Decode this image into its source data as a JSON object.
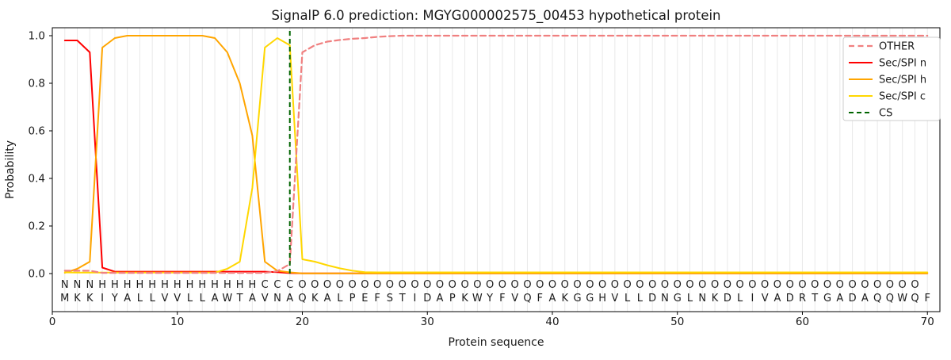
{
  "chart_data": {
    "type": "line",
    "title": "SignalP 6.0 prediction: MGYG000002575_00453 hypothetical protein",
    "xlabel": "Protein sequence",
    "ylabel": "Probability",
    "xlim": [
      0,
      71
    ],
    "ylim": [
      -0.16,
      1.04
    ],
    "xticks": [
      "0",
      "10",
      "20",
      "30",
      "40",
      "50",
      "60",
      "70"
    ],
    "yticks": [
      "0.0",
      "0.2",
      "0.4",
      "0.6",
      "0.8",
      "1.0"
    ],
    "grid": "vertical line at every residue position 1-70",
    "legend_position": "upper right",
    "x_note": "x values are residue positions 1..70 (array index + 1)",
    "series": [
      {
        "name": "Sec/SPI n",
        "color": "#ff0000",
        "dash": null,
        "width": 2,
        "values": [
          0.98,
          0.98,
          0.93,
          0.025,
          0.008,
          0.008,
          0.008,
          0.008,
          0.008,
          0.008,
          0.008,
          0.008,
          0.008,
          0.008,
          0.008,
          0.008,
          0.008,
          0.006,
          0.002,
          0.001,
          0.001,
          0.001,
          0.001,
          0.001,
          0.001,
          0.001,
          0.001,
          0.001,
          0.001,
          0.001,
          0.001,
          0.001,
          0.001,
          0.001,
          0.001,
          0.001,
          0.001,
          0.001,
          0.001,
          0.001,
          0.001,
          0.001,
          0.001,
          0.001,
          0.001,
          0.001,
          0.001,
          0.001,
          0.001,
          0.001,
          0.001,
          0.001,
          0.001,
          0.001,
          0.001,
          0.001,
          0.001,
          0.001,
          0.001,
          0.001,
          0.001,
          0.001,
          0.001,
          0.001,
          0.001,
          0.001,
          0.001,
          0.001,
          0.001,
          0.001
        ]
      },
      {
        "name": "Sec/SPI h",
        "color": "#ffa500",
        "dash": null,
        "width": 2,
        "values": [
          0.003,
          0.02,
          0.05,
          0.95,
          0.99,
          1.0,
          1.0,
          1.0,
          1.0,
          1.0,
          1.0,
          1.0,
          0.99,
          0.93,
          0.8,
          0.58,
          0.05,
          0.012,
          0.005,
          0.001,
          0.001,
          0.001,
          0.001,
          0.001,
          0.001,
          0.001,
          0.001,
          0.001,
          0.001,
          0.001,
          0.001,
          0.001,
          0.001,
          0.001,
          0.001,
          0.001,
          0.001,
          0.001,
          0.001,
          0.001,
          0.001,
          0.001,
          0.001,
          0.001,
          0.001,
          0.001,
          0.001,
          0.001,
          0.001,
          0.001,
          0.001,
          0.001,
          0.001,
          0.001,
          0.001,
          0.001,
          0.001,
          0.001,
          0.001,
          0.001,
          0.001,
          0.001,
          0.001,
          0.001,
          0.001,
          0.001,
          0.001,
          0.001,
          0.001,
          0.001
        ]
      },
      {
        "name": "Sec/SPI c",
        "color": "#ffd700",
        "dash": null,
        "width": 2,
        "values": [
          0.005,
          0.004,
          0.004,
          0.004,
          0.004,
          0.004,
          0.004,
          0.004,
          0.004,
          0.004,
          0.004,
          0.004,
          0.004,
          0.02,
          0.05,
          0.36,
          0.95,
          0.99,
          0.96,
          0.06,
          0.05,
          0.035,
          0.022,
          0.012,
          0.006,
          0.005,
          0.005,
          0.005,
          0.005,
          0.005,
          0.005,
          0.005,
          0.005,
          0.005,
          0.005,
          0.005,
          0.005,
          0.005,
          0.005,
          0.005,
          0.005,
          0.005,
          0.005,
          0.005,
          0.005,
          0.005,
          0.005,
          0.005,
          0.005,
          0.005,
          0.005,
          0.005,
          0.005,
          0.005,
          0.005,
          0.005,
          0.005,
          0.005,
          0.005,
          0.005,
          0.005,
          0.005,
          0.005,
          0.005,
          0.005,
          0.005,
          0.005,
          0.005,
          0.005,
          0.005
        ]
      },
      {
        "name": "OTHER",
        "color": "#f08080",
        "dash": [
          7,
          4.5
        ],
        "width": 2.2,
        "values": [
          0.012,
          0.012,
          0.012,
          0.003,
          0.003,
          0.003,
          0.003,
          0.003,
          0.003,
          0.003,
          0.003,
          0.003,
          0.003,
          0.003,
          0.003,
          0.003,
          0.003,
          0.01,
          0.04,
          0.93,
          0.96,
          0.975,
          0.982,
          0.987,
          0.99,
          0.995,
          0.998,
          1.0,
          1.0,
          1.0,
          1.0,
          1.0,
          1.0,
          1.0,
          1.0,
          1.0,
          1.0,
          1.0,
          1.0,
          1.0,
          1.0,
          1.0,
          1.0,
          1.0,
          1.0,
          1.0,
          1.0,
          1.0,
          1.0,
          1.0,
          1.0,
          1.0,
          1.0,
          1.0,
          1.0,
          1.0,
          1.0,
          1.0,
          1.0,
          1.0,
          1.0,
          1.0,
          1.0,
          1.0,
          1.0,
          1.0,
          1.0,
          1.0,
          1.0,
          1.0
        ]
      }
    ],
    "cs_line": {
      "name": "CS",
      "position": 19,
      "color": "#006400",
      "dash": [
        6,
        4
      ],
      "width": 2,
      "top_value": 1.02
    },
    "legend": [
      "OTHER",
      "Sec/SPI n",
      "Sec/SPI h",
      "Sec/SPI c",
      "CS"
    ],
    "sequence": "MKKIYALLVVLLAWTAVNAQKALPEFSTIDAPKWYFVQFAKGGHVLLDNGLNKDLIVADRTGADAQQWQF",
    "region_labels": "NNNHHHHHHHHHHHHHCCCOOOOOOOOOOOOOOOOOOOOOOOOOOOOOOOOOOOOOOOOOOOOOOOOOO",
    "region_colors": {
      "N": "#ff0000",
      "H": "#ffa500",
      "C": "#ffd700",
      "O": "#808080"
    },
    "sequence_color": "#1f1f1f",
    "grid_color": "#e9e9e9",
    "spine_color": "#000000",
    "background": "#ffffff"
  }
}
